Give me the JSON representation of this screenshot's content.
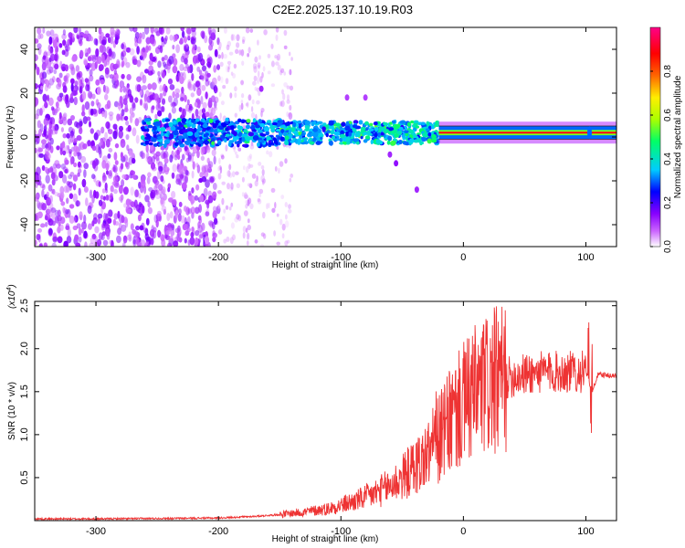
{
  "title": "C2E2.2025.137.10.19.R03",
  "chart_data": [
    {
      "type": "heatmap",
      "name": "spectrogram",
      "xlabel": "Height of straight line (km)",
      "ylabel": "Frequency (Hz)",
      "xlim": [
        -350,
        125
      ],
      "ylim": [
        -50,
        50
      ],
      "xticks": [
        -300,
        -200,
        -100,
        0,
        100
      ],
      "xtick_labels": [
        "-300",
        "-200",
        "-100",
        "0",
        "100"
      ],
      "yticks": [
        -40,
        -20,
        0,
        20,
        40
      ],
      "ytick_labels": [
        "-40",
        "-20",
        "0",
        "20",
        "40"
      ],
      "description_of_pattern": {
        "noise_region_km": [
          -350,
          -200
        ],
        "sparse_noise_region_km": [
          -200,
          -140
        ],
        "signal_band_center_hz": 2,
        "signal_start_km": -262,
        "strong_carrier_start_km": -20
      },
      "colorbar": {
        "label": "Normalized spectral amplitude",
        "range": [
          0,
          1
        ],
        "ticks": [
          0.0,
          0.2,
          0.4,
          0.6,
          0.8
        ],
        "tick_labels": [
          "0.0",
          "0.2",
          "0.4",
          "0.6",
          "0.8"
        ],
        "colors": [
          "#ffffff",
          "#cc66ff",
          "#8800ff",
          "#0000ff",
          "#00ccff",
          "#00ff66",
          "#aaff00",
          "#ffee00",
          "#ff6600",
          "#ff0000",
          "#ff0088"
        ]
      }
    },
    {
      "type": "line",
      "name": "snr",
      "xlabel": "Height of straight line (km)",
      "ylabel": "SNR (10 * v/v)",
      "scale_label": "(x10",
      "scale_exponent": "4",
      "scale_close": ")",
      "xlim": [
        -350,
        125
      ],
      "ylim": [
        0,
        2.55
      ],
      "xticks": [
        -300,
        -200,
        -100,
        0,
        100
      ],
      "xtick_labels": [
        "-300",
        "-200",
        "-100",
        "0",
        "100"
      ],
      "yticks": [
        0.5,
        1.0,
        1.5,
        2.0,
        2.5
      ],
      "ytick_labels": [
        "0.5",
        "1.0",
        "1.5",
        "2.0",
        "2.5"
      ],
      "line_color": "#ee3333",
      "x": [
        -350,
        -300,
        -250,
        -200,
        -170,
        -150,
        -130,
        -110,
        -100,
        -90,
        -80,
        -70,
        -60,
        -50,
        -40,
        -30,
        -25,
        -20,
        -15,
        -10,
        -5,
        0,
        10,
        20,
        30,
        40,
        50,
        60,
        70,
        80,
        90,
        100,
        103,
        105,
        110,
        125
      ],
      "values": [
        0.02,
        0.02,
        0.025,
        0.03,
        0.05,
        0.07,
        0.1,
        0.14,
        0.18,
        0.22,
        0.27,
        0.33,
        0.4,
        0.5,
        0.62,
        0.75,
        0.85,
        0.95,
        1.05,
        1.15,
        1.25,
        1.35,
        1.48,
        1.58,
        1.62,
        1.68,
        1.7,
        1.72,
        1.73,
        1.73,
        1.73,
        1.73,
        1.6,
        1.5,
        1.7,
        1.68
      ]
    }
  ]
}
